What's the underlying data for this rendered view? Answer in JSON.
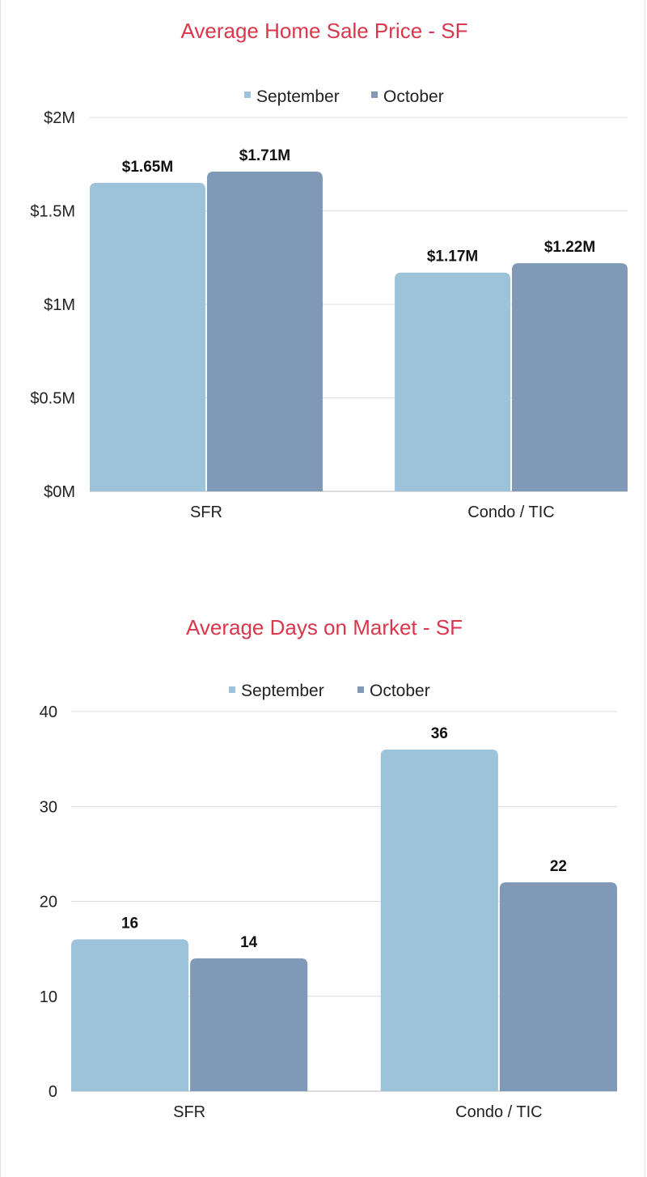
{
  "colors": {
    "title": "#d9374b",
    "september": "#9dc3da",
    "october": "#7f99b6"
  },
  "chart_data": [
    {
      "type": "bar",
      "title": "Average Home Sale Price - SF",
      "categories": [
        "SFR",
        "Condo / TIC"
      ],
      "series": [
        {
          "name": "September",
          "values": [
            1.65,
            1.17
          ],
          "labels": [
            "$1.65M",
            "$1.17M"
          ]
        },
        {
          "name": "October",
          "values": [
            1.71,
            1.22
          ],
          "labels": [
            "$1.71M",
            "$1.22M"
          ]
        }
      ],
      "yticks": [
        {
          "value": 0,
          "label": "$0M"
        },
        {
          "value": 0.5,
          "label": "$0.5M"
        },
        {
          "value": 1,
          "label": "$1M"
        },
        {
          "value": 1.5,
          "label": "$1.5M"
        },
        {
          "value": 2,
          "label": "$2M"
        }
      ],
      "ylim": [
        0,
        2
      ],
      "legend": "top-center",
      "grid": true
    },
    {
      "type": "bar",
      "title": "Average Days on Market - SF",
      "categories": [
        "SFR",
        "Condo / TIC"
      ],
      "series": [
        {
          "name": "September",
          "values": [
            16,
            36
          ],
          "labels": [
            "16",
            "36"
          ]
        },
        {
          "name": "October",
          "values": [
            14,
            22
          ],
          "labels": [
            "14",
            "22"
          ]
        }
      ],
      "yticks": [
        {
          "value": 0,
          "label": "0"
        },
        {
          "value": 10,
          "label": "10"
        },
        {
          "value": 20,
          "label": "20"
        },
        {
          "value": 30,
          "label": "30"
        },
        {
          "value": 40,
          "label": "40"
        }
      ],
      "ylim": [
        0,
        40
      ],
      "legend": "top-center",
      "grid": true
    }
  ]
}
